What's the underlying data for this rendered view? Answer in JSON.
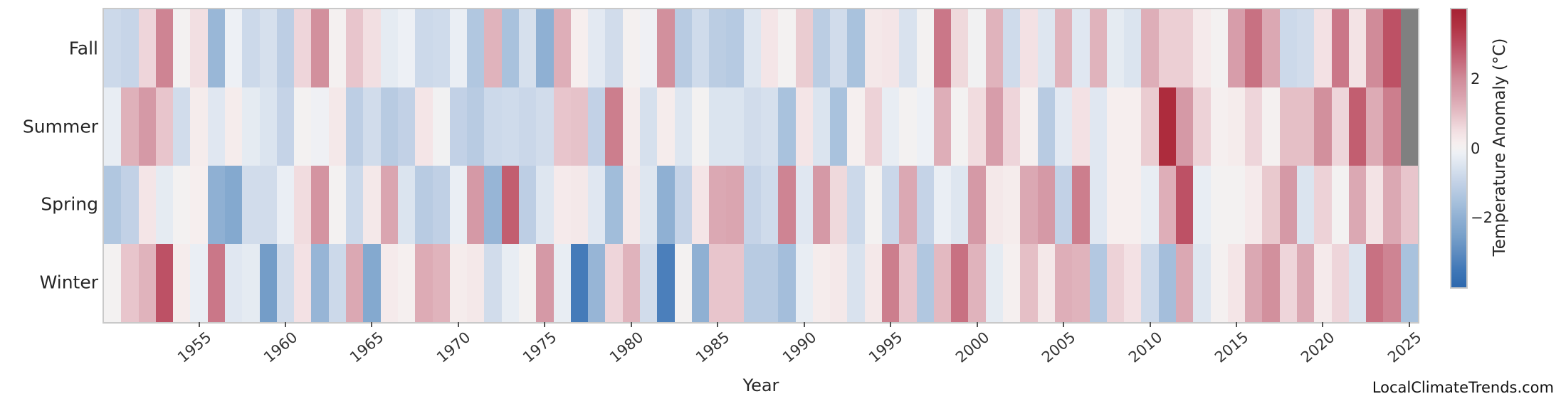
{
  "watermark": "LocalClimateTrends.com",
  "chart_data": {
    "type": "heatmap",
    "xlabel": "Year",
    "colorbar_label": "Temperature Anomaly (°C)",
    "rows": [
      "Fall",
      "Summer",
      "Spring",
      "Winter"
    ],
    "years": [
      1950,
      1951,
      1952,
      1953,
      1954,
      1955,
      1956,
      1957,
      1958,
      1959,
      1960,
      1961,
      1962,
      1963,
      1964,
      1965,
      1966,
      1967,
      1968,
      1969,
      1970,
      1971,
      1972,
      1973,
      1974,
      1975,
      1976,
      1977,
      1978,
      1979,
      1980,
      1981,
      1982,
      1983,
      1984,
      1985,
      1986,
      1987,
      1988,
      1989,
      1990,
      1991,
      1992,
      1993,
      1994,
      1995,
      1996,
      1997,
      1998,
      1999,
      2000,
      2001,
      2002,
      2003,
      2004,
      2005,
      2006,
      2007,
      2008,
      2009,
      2010,
      2011,
      2012,
      2013,
      2014,
      2015,
      2016,
      2017,
      2018,
      2019,
      2020,
      2021,
      2022,
      2023,
      2024,
      2025
    ],
    "x_tick_years": [
      1955,
      1960,
      1965,
      1970,
      1975,
      1980,
      1985,
      1990,
      1995,
      2000,
      2005,
      2010,
      2015,
      2020,
      2025
    ],
    "xlim": [
      1950,
      2025
    ],
    "grid": false,
    "legend_position": "right-colorbar",
    "colorbar_ticks": [
      {
        "label": "2",
        "value": 2
      },
      {
        "label": "0",
        "value": 0
      },
      {
        "label": "−2",
        "value": -2
      }
    ],
    "vmin": -4,
    "vmax": 4,
    "missing_color": "#808080",
    "colormap_stops": [
      [
        -4.0,
        "#2d68ad"
      ],
      [
        -3.5,
        "#3f77b7"
      ],
      [
        -3.0,
        "#5e8cc0"
      ],
      [
        -2.5,
        "#79a1ca"
      ],
      [
        -2.0,
        "#8fb0d3"
      ],
      [
        -1.5,
        "#a9c2dd"
      ],
      [
        -1.0,
        "#c2d1e6"
      ],
      [
        -0.5,
        "#dbe4ef"
      ],
      [
        -0.15,
        "#edf0f5"
      ],
      [
        0.0,
        "#f3f1f1"
      ],
      [
        0.15,
        "#f6eeee"
      ],
      [
        0.5,
        "#f2dfe2"
      ],
      [
        1.0,
        "#e5bfc6"
      ],
      [
        1.5,
        "#d9a2ae"
      ],
      [
        2.0,
        "#d08b99"
      ],
      [
        2.5,
        "#c66a7c"
      ],
      [
        3.0,
        "#bb4b5f"
      ],
      [
        3.5,
        "#b13343"
      ],
      [
        4.0,
        "#a62233"
      ]
    ],
    "series": [
      {
        "name": "Fall",
        "values": [
          -0.8,
          -0.9,
          0.65,
          2.1,
          0.0,
          0.5,
          -1.8,
          -0.15,
          -0.8,
          -0.6,
          -1.1,
          0.65,
          1.9,
          0.05,
          0.9,
          0.5,
          -0.3,
          -0.15,
          -0.8,
          -0.75,
          -0.2,
          -1.35,
          1.2,
          -1.5,
          -0.6,
          -2.0,
          1.3,
          0.15,
          -0.35,
          -0.7,
          0.05,
          -0.1,
          1.9,
          -1.2,
          -0.75,
          -1.15,
          -1.25,
          -0.45,
          0.35,
          0.0,
          0.8,
          -1.15,
          -0.7,
          -1.5,
          0.3,
          0.35,
          -0.55,
          0.0,
          2.3,
          0.6,
          -0.05,
          1.2,
          -0.75,
          0.45,
          -0.45,
          1.2,
          -0.4,
          1.2,
          -0.3,
          -0.5,
          1.3,
          0.75,
          0.75,
          0.25,
          0.0,
          1.6,
          2.4,
          1.4,
          -0.8,
          -0.7,
          0.45,
          2.3,
          0.4,
          2.0,
          2.9,
          null
        ]
      },
      {
        "name": "Summer",
        "values": [
          -0.25,
          1.25,
          1.7,
          0.9,
          -0.7,
          0.2,
          -0.4,
          0.2,
          -0.3,
          -0.5,
          -0.95,
          0.0,
          -0.1,
          0.3,
          -1.1,
          -0.7,
          -1.2,
          -1.0,
          0.35,
          -0.05,
          -1.0,
          -1.2,
          -0.8,
          -0.75,
          -0.85,
          -0.7,
          0.9,
          0.95,
          -1.0,
          2.2,
          0.2,
          -0.6,
          0.2,
          -0.45,
          0.0,
          -0.5,
          -0.5,
          -0.7,
          -0.6,
          -1.5,
          0.35,
          -0.5,
          -1.5,
          0.1,
          0.7,
          -0.25,
          0.0,
          -0.15,
          1.3,
          0.0,
          0.55,
          1.6,
          0.65,
          0.1,
          -1.2,
          -0.35,
          0.45,
          -0.4,
          0.15,
          0.15,
          0.8,
          3.7,
          1.7,
          0.7,
          0.1,
          0.2,
          0.65,
          0.05,
          1.0,
          1.0,
          1.9,
          0.65,
          2.7,
          1.35,
          2.2,
          null
        ]
      },
      {
        "name": "Spring",
        "values": [
          -1.35,
          -1.0,
          0.35,
          -0.3,
          0.0,
          0.15,
          -2.0,
          -2.25,
          -0.7,
          -0.7,
          -0.2,
          0.55,
          1.8,
          0.0,
          -0.8,
          0.3,
          1.45,
          -0.5,
          -1.2,
          -1.05,
          -0.2,
          1.7,
          -1.85,
          2.7,
          -1.1,
          -0.45,
          0.25,
          0.3,
          -0.4,
          -1.65,
          0.3,
          -0.45,
          -2.0,
          -0.95,
          0.35,
          1.4,
          1.45,
          -0.95,
          -0.75,
          2.1,
          -0.4,
          1.7,
          0.6,
          -0.8,
          0.0,
          -0.85,
          1.4,
          -0.95,
          -0.2,
          -0.45,
          1.7,
          0.3,
          0.2,
          1.4,
          1.7,
          -1.0,
          2.2,
          -0.4,
          0.15,
          0.15,
          -0.25,
          1.3,
          2.9,
          -0.25,
          0.0,
          0.0,
          0.25,
          0.85,
          1.7,
          -0.5,
          0.7,
          0.0,
          1.4,
          0.4,
          1.4,
          0.9
        ]
      },
      {
        "name": "Winter",
        "values": [
          0.0,
          0.9,
          1.2,
          2.9,
          0.2,
          -0.2,
          2.3,
          -0.4,
          -0.3,
          -2.6,
          -0.7,
          0.45,
          -1.85,
          -0.8,
          1.4,
          -2.25,
          0.25,
          0.1,
          1.35,
          1.2,
          0.2,
          0.3,
          -0.7,
          -0.25,
          0.0,
          1.7,
          -0.25,
          -3.4,
          -1.85,
          0.65,
          1.2,
          -0.7,
          -3.3,
          0.0,
          -2.0,
          0.9,
          0.9,
          -1.2,
          -1.2,
          -1.6,
          -0.25,
          0.2,
          0.3,
          -0.55,
          0.3,
          2.2,
          0.9,
          -1.35,
          1.1,
          2.4,
          1.2,
          -0.3,
          0.1,
          1.0,
          0.3,
          1.3,
          1.2,
          -1.3,
          0.7,
          0.45,
          -0.8,
          -1.6,
          1.4,
          -0.45,
          0.05,
          0.35,
          1.4,
          1.9,
          0.65,
          1.4,
          0.25,
          0.65,
          -0.5,
          2.4,
          2.1,
          -1.5
        ]
      }
    ]
  }
}
